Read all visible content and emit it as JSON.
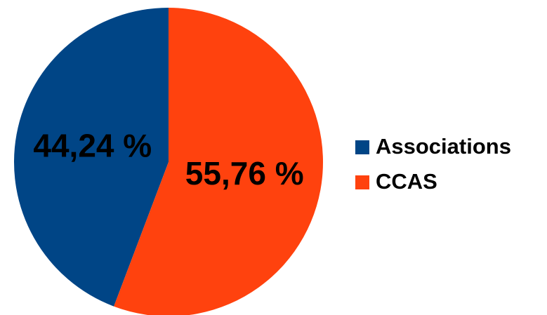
{
  "chart_data": {
    "type": "pie",
    "categories": [
      "Associations",
      "CCAS"
    ],
    "values": [
      44.24,
      55.76
    ],
    "value_labels": [
      "44,24 %",
      "55,76 %"
    ],
    "colors": [
      "#004586",
      "#ff420e"
    ],
    "legend": "right"
  }
}
